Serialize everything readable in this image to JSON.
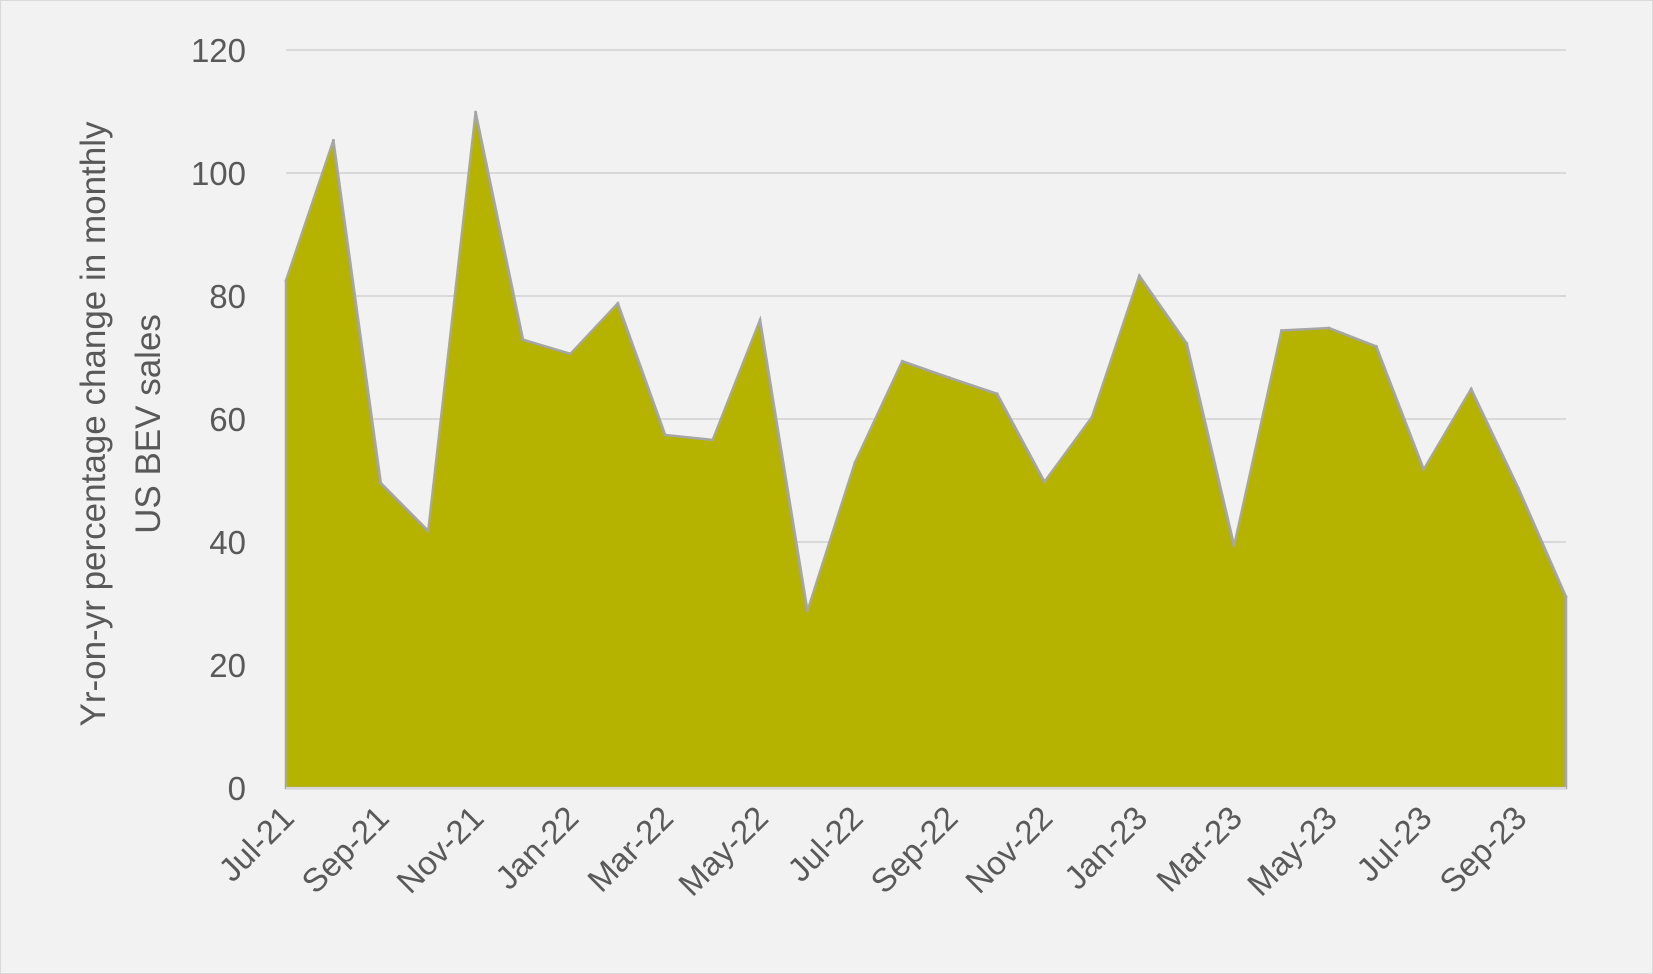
{
  "chart_data": {
    "type": "area",
    "title": "",
    "xlabel": "",
    "ylabel": [
      "Yr-on-yr percentage change in monthly",
      "US BEV sales"
    ],
    "ylim": [
      0,
      120
    ],
    "yticks": [
      0,
      20,
      40,
      60,
      80,
      100,
      120
    ],
    "grid": true,
    "legend": "none",
    "colors": {
      "fill": "#b5b300",
      "stroke": "#a6a6a6",
      "grid": "#d9d9d9",
      "text": "#595959",
      "background": "#f2f2f2"
    },
    "x_tick_labels": [
      "Jul-21",
      "Sep-21",
      "Nov-21",
      "Jan-22",
      "Mar-22",
      "May-22",
      "Jul-22",
      "Sep-22",
      "Nov-22",
      "Jan-23",
      "Mar-23",
      "May-23",
      "Jul-23",
      "Sep-23"
    ],
    "x": [
      "Jul-21",
      "Aug-21",
      "Sep-21",
      "Oct-21",
      "Nov-21",
      "Dec-21",
      "Jan-22",
      "Feb-22",
      "Mar-22",
      "Apr-22",
      "May-22",
      "Jun-22",
      "Jul-22",
      "Aug-22",
      "Sep-22",
      "Oct-22",
      "Nov-22",
      "Dec-22",
      "Jan-23",
      "Feb-23",
      "Mar-23",
      "Apr-23",
      "May-23",
      "Jun-23",
      "Jul-23",
      "Aug-23",
      "Sep-23",
      "Oct-23"
    ],
    "values": [
      82.5,
      105.3,
      49.6,
      41.8,
      109.9,
      72.9,
      70.6,
      78.8,
      57.4,
      56.6,
      76.1,
      28.8,
      52.9,
      69.4,
      66.7,
      64.1,
      49.8,
      60.3,
      83.3,
      72.3,
      39.4,
      74.4,
      74.8,
      71.8,
      51.8,
      64.9,
      48.7,
      31.1
    ]
  }
}
